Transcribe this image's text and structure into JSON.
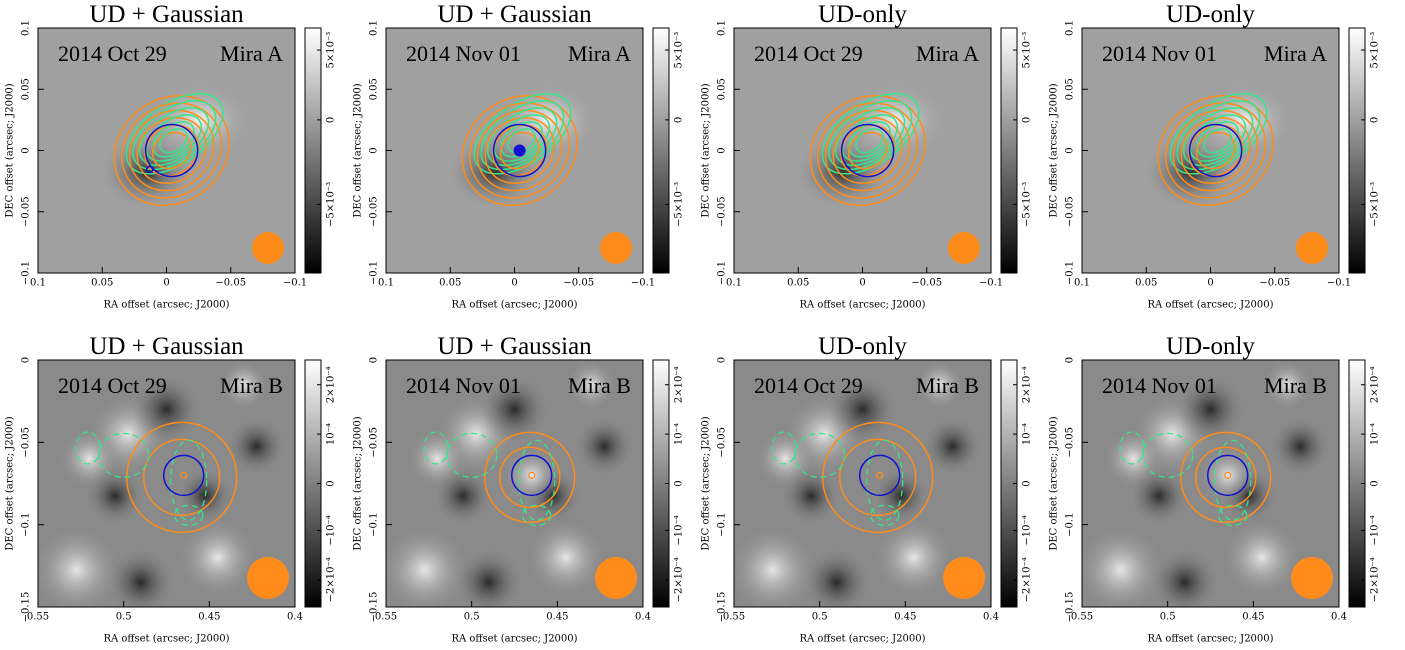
{
  "x_label": "RA offset (arcsec; J2000)",
  "y_label": "DEC offset (arcsec; J2000)",
  "rows": [
    {
      "object": "Mira A",
      "xticks": [
        "0.1",
        "0.05",
        "0",
        "−0.05",
        "−0.1"
      ],
      "yticks": [
        "−0.1",
        "−0.05",
        "0",
        "0.05",
        "0.1"
      ],
      "colorbar_ticks": [
        "−5×10⁻³",
        "0",
        "5×10⁻³"
      ],
      "panels": [
        {
          "title": "UD + Gaussian",
          "date": "2014 Oct 29"
        },
        {
          "title": "UD + Gaussian",
          "date": "2014 Nov 01"
        },
        {
          "title": "UD-only",
          "date": "2014 Oct 29"
        },
        {
          "title": "UD-only",
          "date": "2014 Nov 01"
        }
      ]
    },
    {
      "object": "Mira B",
      "xticks": [
        "0.55",
        "0.5",
        "0.45",
        "0.4"
      ],
      "yticks": [
        "−0.15",
        "−0.1",
        "−0.05",
        "0"
      ],
      "colorbar_ticks": [
        "−2×10⁻⁴",
        "−10⁻⁴",
        "0",
        "10⁻⁴",
        "2×10⁻⁴"
      ],
      "panels": [
        {
          "title": "UD + Gaussian",
          "date": "2014 Oct 29"
        },
        {
          "title": "UD + Gaussian",
          "date": "2014 Nov 01"
        },
        {
          "title": "UD-only",
          "date": "2014 Oct 29"
        },
        {
          "title": "UD-only",
          "date": "2014 Nov 01"
        }
      ]
    }
  ]
}
